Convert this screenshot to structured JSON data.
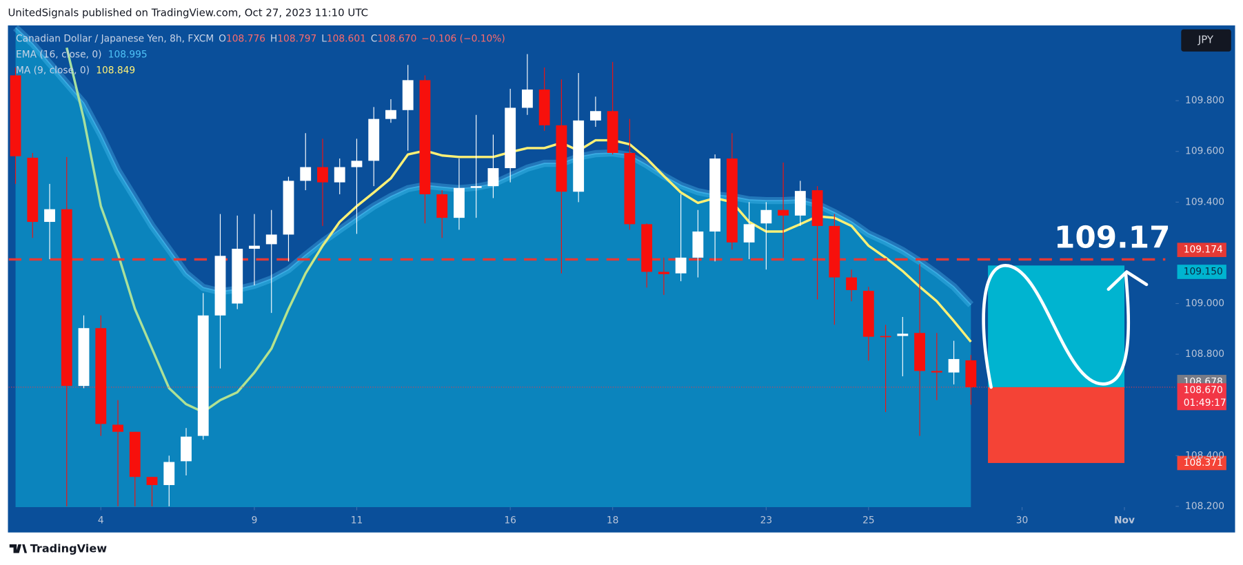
{
  "header": {
    "published": "UnitedSignals published on TradingView.com, Oct 27, 2023 11:10 UTC"
  },
  "footer": {
    "brand": "TradingView"
  },
  "currency_button": "JPY",
  "chart_data": {
    "type": "candlestick",
    "symbol": "Canadian Dollar / Japanese Yen, 8h, FXCM",
    "legend_ohlc": [
      {
        "key": "O",
        "value": "108.776"
      },
      {
        "key": "H",
        "value": "108.797"
      },
      {
        "key": "L",
        "value": "108.601"
      },
      {
        "key": "C",
        "value": "108.670"
      }
    ],
    "change": "−0.106 (−0.10%)",
    "up_color": "#ffffff",
    "down_color": "#f7100c",
    "open": [
      109.9,
      109.575,
      109.322,
      109.372,
      108.675,
      108.903,
      108.522,
      108.494,
      108.316,
      108.284,
      108.378,
      108.478,
      108.953,
      109.0,
      109.216,
      109.234,
      109.272,
      109.484,
      109.538,
      109.478,
      109.538,
      109.563,
      109.728,
      109.763,
      109.881,
      109.431,
      109.338,
      109.456,
      109.463,
      109.534,
      109.772,
      109.844,
      109.703,
      109.441,
      109.722,
      109.759,
      109.594,
      109.313,
      109.125,
      109.119,
      109.181,
      109.284,
      109.572,
      109.241,
      109.316,
      109.369,
      109.347,
      109.447,
      109.306,
      109.103,
      109.05,
      108.872,
      108.872,
      108.884,
      108.734,
      108.728,
      108.776
    ],
    "high": [
      109.931,
      109.594,
      109.472,
      109.578,
      108.953,
      108.953,
      108.619,
      108.494,
      108.316,
      108.4,
      108.509,
      109.041,
      109.353,
      109.347,
      109.353,
      109.369,
      109.5,
      109.672,
      109.65,
      109.572,
      109.65,
      109.775,
      109.806,
      109.941,
      109.9,
      109.447,
      109.572,
      109.744,
      109.666,
      109.847,
      109.984,
      109.931,
      109.884,
      109.909,
      109.816,
      109.953,
      109.728,
      109.316,
      109.181,
      109.431,
      109.369,
      109.588,
      109.672,
      109.4,
      109.4,
      109.556,
      109.484,
      109.463,
      109.353,
      109.134,
      109.066,
      108.916,
      108.947,
      109.156,
      108.884,
      108.853,
      108.797
    ],
    "low": [
      109.472,
      109.259,
      109.175,
      108.2,
      108.666,
      108.478,
      108.2,
      108.2,
      108.2,
      108.2,
      108.322,
      108.463,
      108.744,
      108.978,
      109.072,
      108.963,
      109.166,
      109.447,
      109.306,
      109.431,
      109.275,
      109.463,
      109.713,
      109.603,
      109.316,
      109.259,
      109.291,
      109.338,
      109.416,
      109.478,
      109.744,
      109.681,
      109.119,
      109.4,
      109.697,
      109.588,
      109.291,
      109.063,
      109.034,
      109.088,
      109.103,
      109.166,
      109.213,
      109.175,
      109.134,
      109.181,
      109.306,
      109.016,
      108.916,
      109.009,
      108.775,
      108.572,
      108.713,
      108.478,
      108.619,
      108.681,
      108.601
    ],
    "close": [
      109.581,
      109.322,
      109.372,
      108.675,
      108.903,
      108.525,
      108.494,
      108.316,
      108.284,
      108.375,
      108.475,
      108.953,
      109.188,
      109.216,
      109.228,
      109.272,
      109.484,
      109.538,
      109.478,
      109.538,
      109.563,
      109.728,
      109.763,
      109.881,
      109.431,
      109.338,
      109.456,
      109.463,
      109.534,
      109.772,
      109.844,
      109.703,
      109.441,
      109.722,
      109.759,
      109.594,
      109.313,
      109.125,
      109.116,
      109.181,
      109.284,
      109.572,
      109.241,
      109.313,
      109.369,
      109.347,
      109.444,
      109.306,
      109.103,
      109.053,
      108.869,
      108.869,
      108.881,
      108.734,
      108.728,
      108.781,
      108.67
    ],
    "series": [
      {
        "name": "EMA (16, close, 0)",
        "color": "#4fc3f7",
        "values": [
          110.088,
          110.025,
          109.947,
          109.869,
          109.791,
          109.666,
          109.525,
          109.416,
          109.306,
          109.213,
          109.119,
          109.063,
          109.047,
          109.056,
          109.072,
          109.097,
          109.134,
          109.191,
          109.244,
          109.291,
          109.338,
          109.384,
          109.422,
          109.453,
          109.466,
          109.459,
          109.453,
          109.459,
          109.472,
          109.503,
          109.534,
          109.553,
          109.553,
          109.578,
          109.591,
          109.594,
          109.584,
          109.547,
          109.503,
          109.466,
          109.441,
          109.428,
          109.422,
          109.409,
          109.406,
          109.406,
          109.409,
          109.391,
          109.359,
          109.322,
          109.275,
          109.244,
          109.209,
          109.166,
          109.119,
          109.066,
          108.995
        ]
      },
      {
        "name": "MA (9, close, 0)",
        "color": "#fff176",
        "values": [
          null,
          null,
          null,
          110.009,
          109.728,
          109.384,
          109.197,
          108.978,
          108.822,
          108.666,
          108.603,
          108.572,
          108.619,
          108.65,
          108.728,
          108.822,
          108.978,
          109.119,
          109.228,
          109.322,
          109.384,
          109.438,
          109.494,
          109.588,
          109.603,
          109.584,
          109.578,
          109.578,
          109.578,
          109.597,
          109.613,
          109.613,
          109.634,
          109.603,
          109.644,
          109.644,
          109.628,
          109.572,
          109.503,
          109.438,
          109.397,
          109.416,
          109.4,
          109.322,
          109.284,
          109.284,
          109.313,
          109.344,
          109.338,
          109.306,
          109.228,
          109.181,
          109.128,
          109.066,
          109.009,
          108.931,
          108.849
        ]
      }
    ],
    "xlim": [
      -0.4,
      68
    ],
    "xticks": [
      {
        "value": 5,
        "label": "4"
      },
      {
        "value": 14,
        "label": "9"
      },
      {
        "value": 20,
        "label": "11"
      },
      {
        "value": 29,
        "label": "16"
      },
      {
        "value": 35,
        "label": "18"
      },
      {
        "value": 44,
        "label": "23"
      },
      {
        "value": 50,
        "label": "25"
      },
      {
        "value": 59,
        "label": "30"
      },
      {
        "value": 65,
        "label": "Nov"
      }
    ],
    "ylim": [
      108.197,
      110.097
    ],
    "yticks": [
      {
        "value": 108.2,
        "label": "108.200"
      },
      {
        "value": 108.4,
        "label": "108.400"
      },
      {
        "value": 108.8,
        "label": "108.800"
      },
      {
        "value": 109.0,
        "label": "109.000"
      },
      {
        "value": 109.4,
        "label": "109.400"
      },
      {
        "value": 109.6,
        "label": "109.600"
      },
      {
        "value": 109.8,
        "label": "109.800"
      }
    ],
    "horizontal_line": {
      "value": 109.174,
      "label": "109.174",
      "color": "#e53935"
    },
    "annotation": "109.17",
    "last_price": {
      "value": 108.678,
      "label": "108.678"
    },
    "position": {
      "target": {
        "value": 109.15,
        "label": "109.150",
        "color": "#00b4d0"
      },
      "entry": {
        "value": 108.67,
        "label": "108.670",
        "timer": "01:49:17",
        "color": "#f23645"
      },
      "stop": {
        "value": 108.371,
        "label": "108.371",
        "color": "#f44336"
      }
    }
  }
}
